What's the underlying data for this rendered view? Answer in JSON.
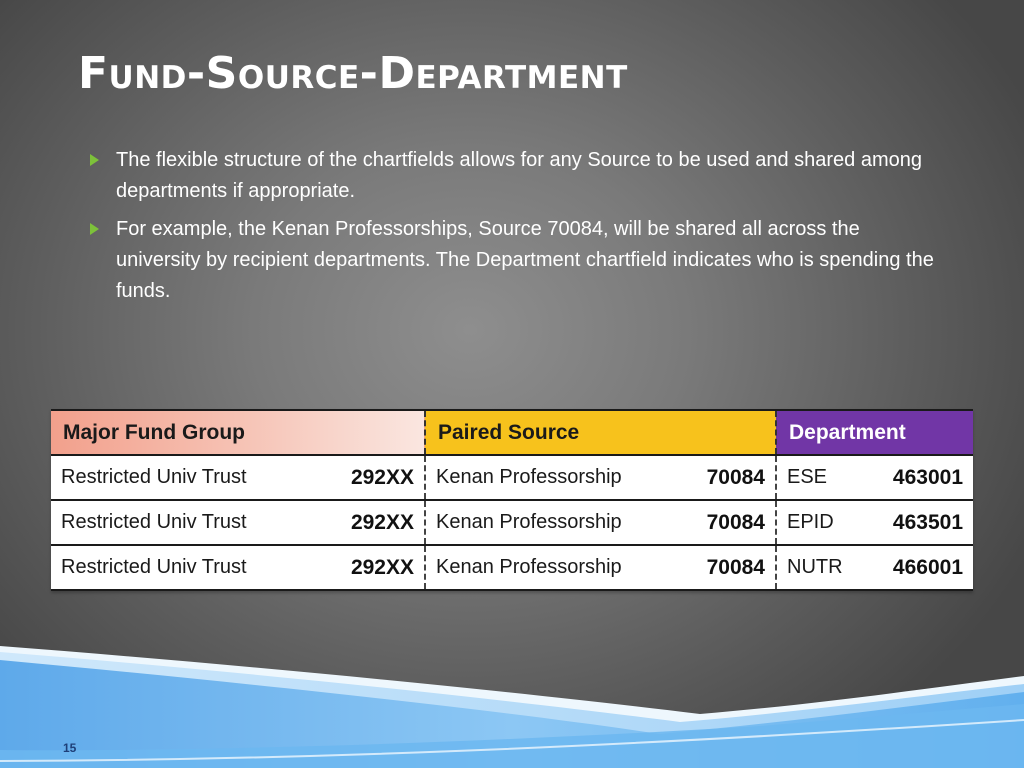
{
  "slide": {
    "title": "Fund-Source-Department",
    "bullets": [
      "The flexible structure of the chartfields allows for any Source to be used and shared among departments if appropriate.",
      "For example, the Kenan Professorships, Source 70084, will be shared all across the university by recipient departments.  The Department chartfield indicates who is spending the funds."
    ],
    "page_number": "15"
  },
  "table": {
    "headers": [
      "Major Fund Group",
      "Paired Source",
      "Department"
    ],
    "rows": [
      {
        "fund": "Restricted Univ Trust",
        "fund_code": "292XX",
        "source": "Kenan Professorship",
        "source_code": "70084",
        "dept": "ESE",
        "dept_code": "463001"
      },
      {
        "fund": "Restricted Univ Trust",
        "fund_code": "292XX",
        "source": "Kenan Professorship",
        "source_code": "70084",
        "dept": "EPID",
        "dept_code": "463501"
      },
      {
        "fund": "Restricted Univ Trust",
        "fund_code": "292XX",
        "source": "Kenan Professorship",
        "source_code": "70084",
        "dept": "NUTR",
        "dept_code": "466001"
      }
    ]
  },
  "colors": {
    "fund_header": "#f4b3a3",
    "source_header": "#f7c21c",
    "dept_header": "#7136a6",
    "bullet_arrow": "#7dc13a"
  },
  "icons": {
    "bullet": "triangle-bullet-icon"
  }
}
